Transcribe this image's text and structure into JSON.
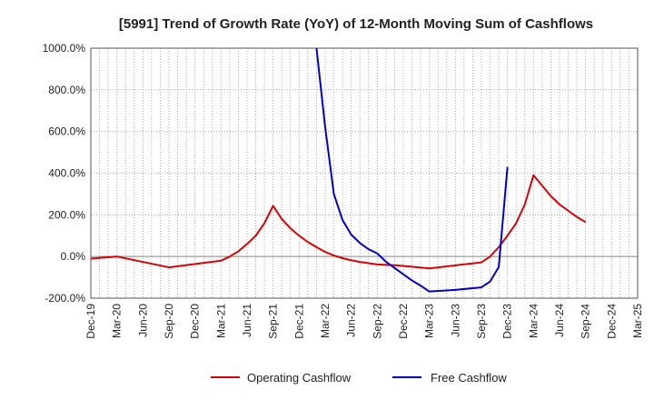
{
  "chart_data": {
    "type": "line",
    "title": "[5991]  Trend of Growth Rate (YoY) of 12-Month Moving Sum of Cashflows",
    "xlabel": "",
    "ylabel": "",
    "ylim": [
      -200,
      1000
    ],
    "yticks": [
      1000,
      800,
      600,
      400,
      200,
      0,
      -200
    ],
    "ytick_labels": [
      "1000.0%",
      "800.0%",
      "600.0%",
      "400.0%",
      "200.0%",
      "0.0%",
      "-200.0%"
    ],
    "xtick_labels": [
      "Dec-19",
      "Mar-20",
      "Jun-20",
      "Sep-20",
      "Dec-20",
      "Mar-21",
      "Jun-21",
      "Sep-21",
      "Dec-21",
      "Mar-22",
      "Jun-22",
      "Sep-22",
      "Dec-22",
      "Mar-23",
      "Jun-23",
      "Sep-23",
      "Dec-23",
      "Mar-24",
      "Jun-24",
      "Sep-24",
      "Dec-24",
      "Mar-25"
    ],
    "grid": true,
    "legend_position": "bottom",
    "series": [
      {
        "name": "Operating Cashflow",
        "color": "#dd0000",
        "points": [
          [
            "Dec-19",
            -10
          ],
          [
            "Mar-20",
            0
          ],
          [
            "Sep-20",
            -52
          ],
          [
            "Mar-21",
            -20
          ],
          [
            "Apr-21",
            0
          ],
          [
            "May-21",
            25
          ],
          [
            "Jun-21",
            60
          ],
          [
            "Jul-21",
            100
          ],
          [
            "Aug-21",
            160
          ],
          [
            "Sep-21",
            243
          ],
          [
            "Oct-21",
            180
          ],
          [
            "Nov-21",
            135
          ],
          [
            "Dec-21",
            100
          ],
          [
            "Jan-22",
            70
          ],
          [
            "Feb-22",
            45
          ],
          [
            "Mar-22",
            22
          ],
          [
            "Apr-22",
            5
          ],
          [
            "May-22",
            -8
          ],
          [
            "Jun-22",
            -18
          ],
          [
            "Jul-22",
            -26
          ],
          [
            "Aug-22",
            -32
          ],
          [
            "Sep-22",
            -38
          ],
          [
            "Oct-22",
            -40
          ],
          [
            "Nov-22",
            -42
          ],
          [
            "Dec-22",
            -45
          ],
          [
            "Mar-23",
            -57
          ],
          [
            "Sep-23",
            -28
          ],
          [
            "Oct-23",
            0
          ],
          [
            "Nov-23",
            45
          ],
          [
            "Dec-23",
            100
          ],
          [
            "Jan-24",
            160
          ],
          [
            "Feb-24",
            250
          ],
          [
            "Mar-24",
            390
          ],
          [
            "Apr-24",
            340
          ],
          [
            "May-24",
            290
          ],
          [
            "Jun-24",
            250
          ],
          [
            "Jul-24",
            220
          ],
          [
            "Aug-24",
            190
          ],
          [
            "Sep-24",
            165
          ]
        ]
      },
      {
        "name": "Free Cashflow",
        "color": "#0000cc",
        "points": [
          [
            "Feb-22",
            1000
          ],
          [
            "Mar-22",
            620
          ],
          [
            "Apr-22",
            300
          ],
          [
            "May-22",
            175
          ],
          [
            "Jun-22",
            105
          ],
          [
            "Jul-22",
            65
          ],
          [
            "Aug-22",
            35
          ],
          [
            "Sep-22",
            15
          ],
          [
            "Oct-22",
            -25
          ],
          [
            "Nov-22",
            -55
          ],
          [
            "Dec-22",
            -85
          ],
          [
            "Jan-23",
            -115
          ],
          [
            "Feb-23",
            -140
          ],
          [
            "Mar-23",
            -168
          ],
          [
            "Jun-23",
            -160
          ],
          [
            "Sep-23",
            -148
          ],
          [
            "Oct-23",
            -120
          ],
          [
            "Nov-23",
            -50
          ],
          [
            "Dec-23",
            430
          ]
        ]
      }
    ]
  }
}
